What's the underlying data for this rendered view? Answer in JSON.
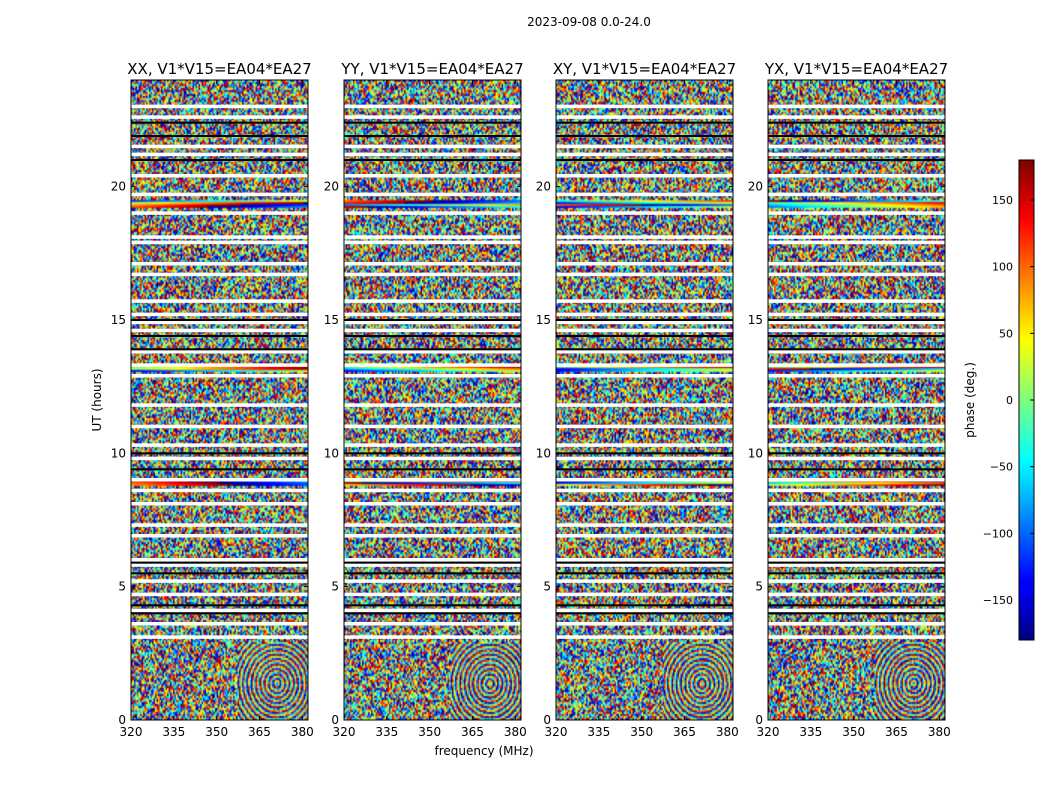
{
  "chart_data": {
    "type": "heatmap",
    "suptitle": "2023-09-08 0.0-24.0",
    "xlabel": "frequency (MHz)",
    "ylabel": "UT (hours)",
    "xlim": [
      320,
      382
    ],
    "ylim": [
      0,
      24
    ],
    "x_ticks": [
      "320",
      "335",
      "350",
      "365",
      "380"
    ],
    "y_ticks": [
      "0",
      "5",
      "10",
      "15",
      "20"
    ],
    "colormap": "jet",
    "colorbar": {
      "label": "phase (deg.)",
      "range": [
        -180,
        180
      ],
      "ticks": [
        "150",
        "100",
        "50",
        "0",
        "−50",
        "−100",
        "−150"
      ]
    },
    "panels": [
      {
        "title": "XX, V1*V15=EA04*EA27"
      },
      {
        "title": "YY, V1*V15=EA04*EA27"
      },
      {
        "title": "XY, V1*V15=EA04*EA27"
      },
      {
        "title": "YX, V1*V15=EA04*EA27"
      }
    ]
  }
}
